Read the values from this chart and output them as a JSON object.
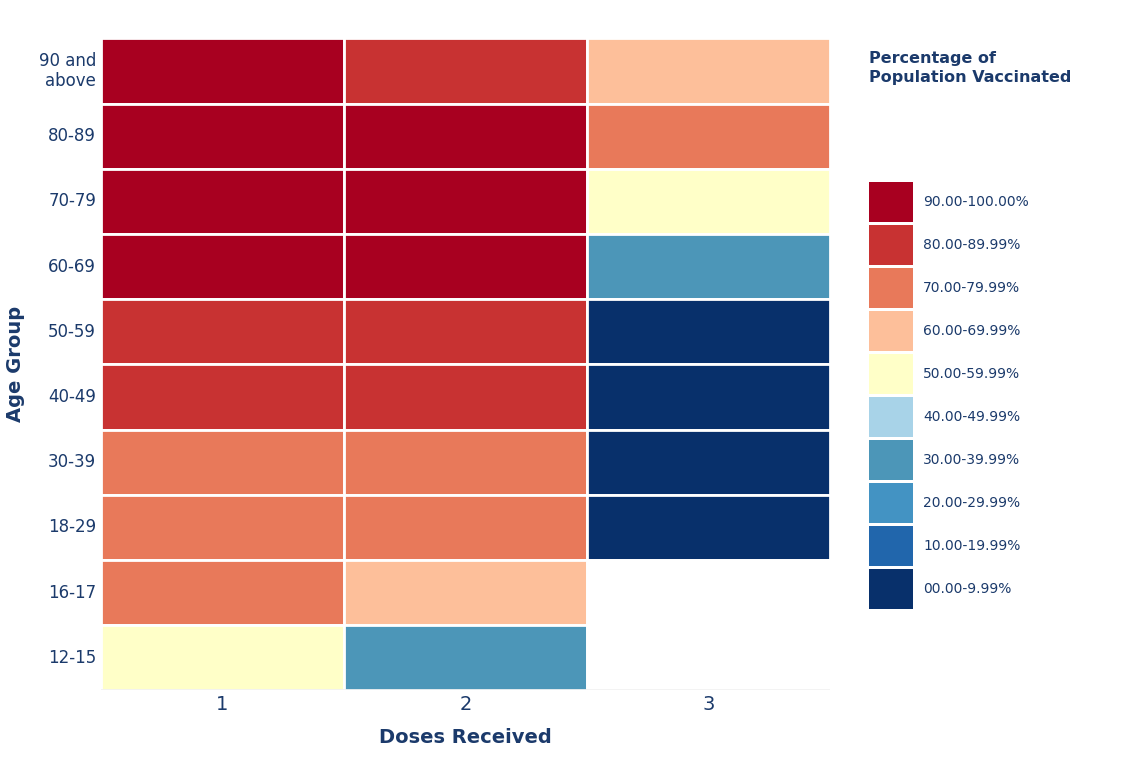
{
  "age_groups": [
    "90 and\nabove",
    "80-89",
    "70-79",
    "60-69",
    "50-59",
    "40-49",
    "30-39",
    "18-29",
    "16-17",
    "12-15"
  ],
  "doses": [
    "1",
    "2",
    "3"
  ],
  "values": [
    [
      95,
      85,
      65
    ],
    [
      95,
      95,
      75
    ],
    [
      95,
      95,
      55
    ],
    [
      95,
      95,
      35
    ],
    [
      85,
      85,
      5
    ],
    [
      85,
      85,
      5
    ],
    [
      75,
      75,
      5
    ],
    [
      75,
      75,
      5
    ],
    [
      75,
      65,
      null
    ],
    [
      55,
      35,
      null
    ]
  ],
  "color_bins": [
    0,
    10,
    20,
    30,
    40,
    50,
    60,
    70,
    80,
    90,
    101
  ],
  "bin_colors": [
    "#08306B",
    "#2166AC",
    "#4393C3",
    "#4C96B8",
    "#A8D3E8",
    "#FFFFC8",
    "#FDBF9A",
    "#E8795A",
    "#C83232",
    "#A80020"
  ],
  "legend_labels": [
    "90.00-100.00%",
    "80.00-89.99%",
    "70.00-79.99%",
    "60.00-69.99%",
    "50.00-59.99%",
    "40.00-49.99%",
    "30.00-39.99%",
    "20.00-29.99%",
    "10.00-19.99%",
    "00.00-9.99%"
  ],
  "legend_colors": [
    "#A80020",
    "#C83232",
    "#E8795A",
    "#FDBF9A",
    "#FFFFC8",
    "#A8D3E8",
    "#4C96B8",
    "#4393C3",
    "#2166AC",
    "#08306B"
  ],
  "legend_title": "Percentage of\nPopulation Vaccinated",
  "xlabel": "Doses Received",
  "ylabel": "Age Group",
  "bg_color": "#FFFFFF",
  "title_color": "#1B3A6B",
  "axis_color": "#1B3A6B",
  "tick_color": "#1B3A6B",
  "grid_color": "#FFFFFF",
  "grid_lw": 2.0,
  "figsize": [
    11.22,
    7.67
  ]
}
